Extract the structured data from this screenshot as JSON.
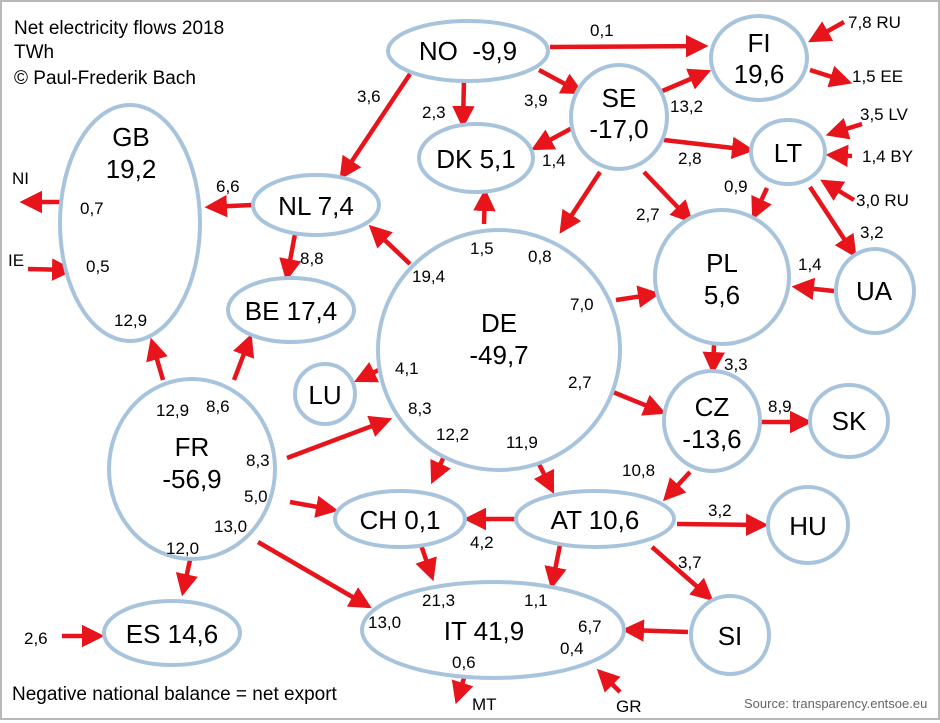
{
  "title": "Net electricity flows 2018",
  "unit": "TWh",
  "copyright": "© Paul-Frederik Bach",
  "footer_note": "Negative national balance = net export",
  "source": "Source: transparency.entsoe.eu",
  "colors": {
    "node_stroke": "#a8c4dc",
    "arrow": "#e8141c"
  },
  "nodes": {
    "NO": "NO  -9,9",
    "FI": [
      "FI",
      "19,6"
    ],
    "SE": [
      "SE",
      "-17,0"
    ],
    "GB": [
      "GB",
      "19,2"
    ],
    "DK": "DK 5,1",
    "LT": "LT",
    "NL": "NL 7,4",
    "DE": [
      "DE",
      "-49,7"
    ],
    "PL": [
      "PL",
      "5,6"
    ],
    "UA": "UA",
    "BE": "BE 17,4",
    "LU": "LU",
    "CZ": [
      "CZ",
      "-13,6"
    ],
    "SK": "SK",
    "FR": [
      "FR",
      "-56,9"
    ],
    "CH": "CH 0,1",
    "AT": "AT 10,6",
    "HU": "HU",
    "SI": "SI",
    "ES": "ES 14,6",
    "IT": "IT 41,9"
  },
  "outside": {
    "NI": "NI",
    "IE": "IE",
    "MT": "MT",
    "GR": "GR"
  },
  "flow_labels": [
    "0,1",
    "7,8 RU",
    "3,6",
    "2,3",
    "3,9",
    "1,5 EE",
    "13,2",
    "3,5 LV",
    "1,4",
    "2,8",
    "1,4 BY",
    "6,6",
    "NI",
    "0,7",
    "0,9",
    "3,0 RU",
    "1,5",
    "0,8",
    "2,7",
    "3,2",
    "IE",
    "0,5",
    "8,8",
    "19,4",
    "1,4",
    "7,0",
    "12,9",
    "4,1",
    "3,3",
    "2,7",
    "12,9",
    "8,6",
    "8,3",
    "8,9",
    "12,2",
    "11,9",
    "8,3",
    "10,8",
    "5,0",
    "3,2",
    "13,0",
    "4,2",
    "3,7",
    "12,0",
    "21,3",
    "1,1",
    "13,0",
    "6,7",
    "2,6",
    "0,4",
    "0,6"
  ]
}
